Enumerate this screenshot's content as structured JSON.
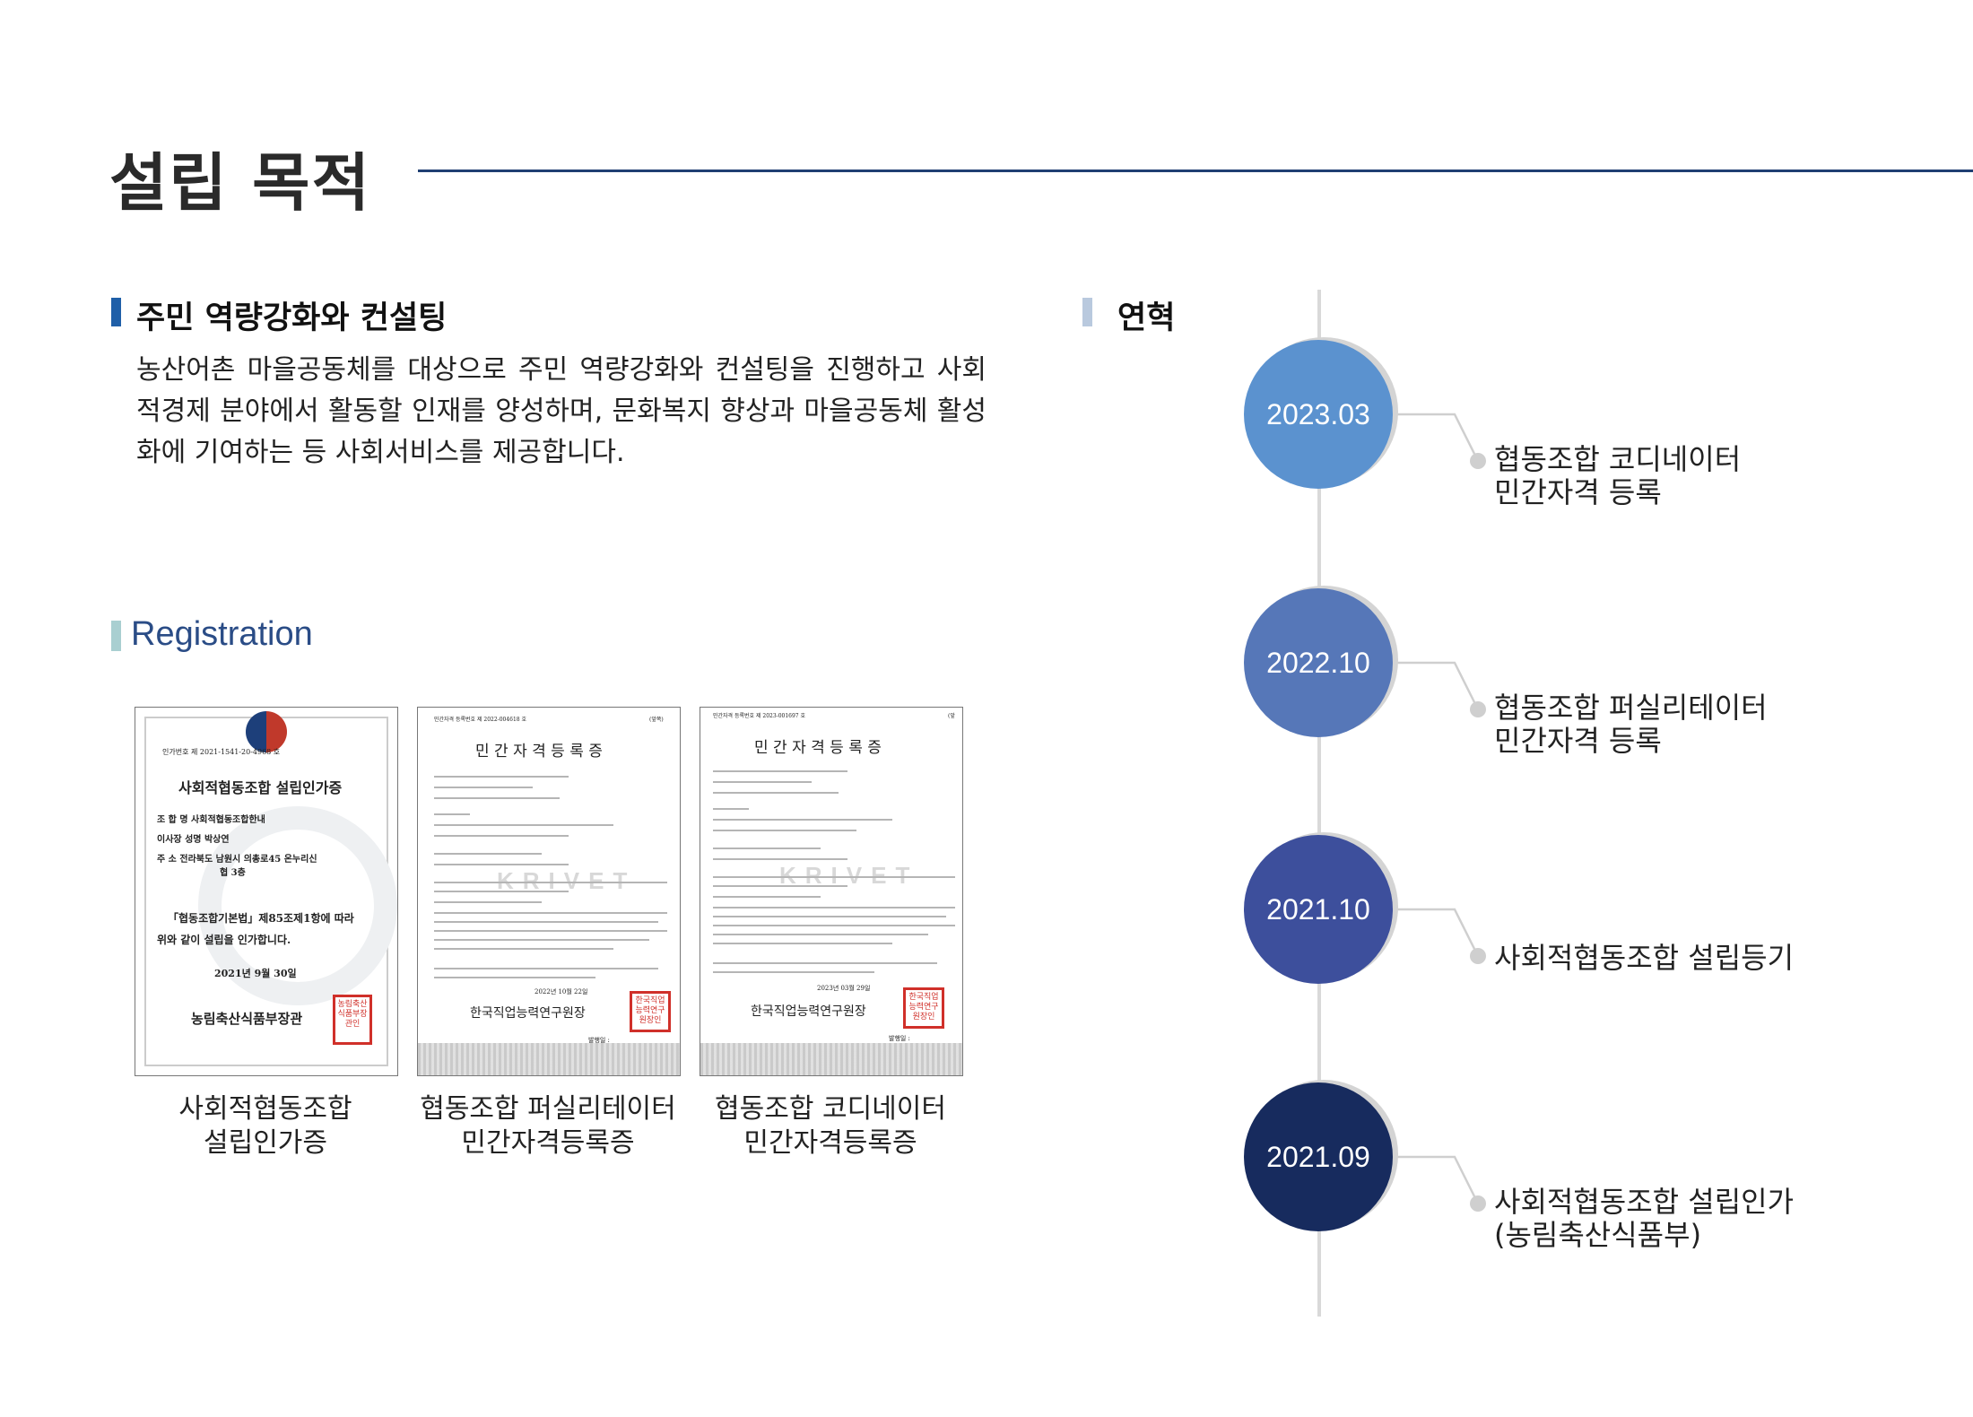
{
  "page_title": "설립 목적",
  "purpose": {
    "heading": "주민 역량강화와 컨설팅",
    "body": "농산어촌 마을공동체를 대상으로 주민 역량강화와 컨설팅을 진행하고 사회적경제 분야에서 활동할 인재를 양성하며, 문화복지 향상과 마을공동체 활성화에 기여하는 등 사회서비스를 제공합니다."
  },
  "registration": {
    "heading": "Registration",
    "documents": [
      {
        "caption_line1": "사회적협동조합",
        "caption_line2": "설립인가증",
        "doc_number": "인가번호 제 2021-1541-20-4968 호",
        "doc_title": "사회적협동조합 설립인가증",
        "field_1": "조 합 명  사회적협동조합한내",
        "field_2": "이사장 성명  박상연",
        "field_3": "주    소  전라북도 남원시 의총로45 온누리신",
        "field_3b": "협 3층",
        "statement_1": "「협동조합기본법」제85조제1항에 따라",
        "statement_2": "위와 같이 설립을 인가합니다.",
        "date": "2021년   9월  30일",
        "issuer": "농림축산식품부장관",
        "seal": "농림축산식품부장관인"
      },
      {
        "caption_line1": "협동조합 퍼실리테이터",
        "caption_line2": "민간자격등록증",
        "doc_number": "민간자격 등록번호 제  2022-004618  호",
        "doc_corner": "(앞쪽)",
        "doc_title": "민 간 자 격 등 록 증",
        "watermark": "KRIVET",
        "date": "2022년  10월  22일",
        "issuer": "한국직업능력연구원장",
        "seal": "한국직업능력연구원장인",
        "footer": "발행일 :"
      },
      {
        "caption_line1": "협동조합 코디네이터",
        "caption_line2": "민간자격등록증",
        "doc_number": "민간자격 등록번호 제  2023-001697  호",
        "doc_corner": "(앞",
        "doc_title": "민 간 자 격 등 록 증",
        "watermark": "KRIVET",
        "date": "2023년  03월  29일",
        "issuer": "한국직업능력연구원장",
        "seal": "한국직업능력연구원장인",
        "footer": "발행일 :"
      }
    ]
  },
  "history": {
    "heading": "연혁",
    "events": [
      {
        "date": "2023.03",
        "line1": "협동조합 코디네이터",
        "line2": "민간자격 등록",
        "color": "#5b92cf"
      },
      {
        "date": "2022.10",
        "line1": "협동조합 퍼실리테이터",
        "line2": "민간자격 등록",
        "color": "#5677b8"
      },
      {
        "date": "2021.10",
        "line1": "사회적협동조합 설립등기",
        "line2": "",
        "color": "#3d4f9c"
      },
      {
        "date": "2021.09",
        "line1": "사회적협동조합 설립인가",
        "line2": "(농림축산식품부)",
        "color": "#172b5e"
      }
    ]
  },
  "colors": {
    "title_rule": "#1f3f73",
    "purpose_bar": "#1f5fa8",
    "registration_bar": "#a9cfd1",
    "history_bar": "#b9c9de",
    "registration_text": "#2a4c86",
    "timeline_line": "#d9d9d9"
  }
}
